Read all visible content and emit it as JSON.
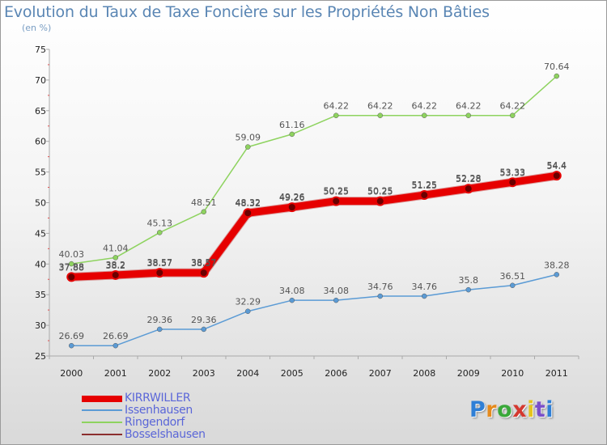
{
  "header": {
    "title": "Evolution du Taux de Taxe Foncière sur les Propriétés Non Bâties",
    "subtitle": "(en %)"
  },
  "brand": {
    "letters": [
      "P",
      "r",
      "o",
      "x",
      "i",
      "t",
      "i"
    ],
    "colors": [
      "#2f7fd6",
      "#e58a1d",
      "#3aa83a",
      "#d4382f",
      "#e5c41d",
      "#7a4fc9",
      "#2f7fd6"
    ]
  },
  "chart_data": {
    "type": "line",
    "title": "Evolution du Taux de Taxe Foncière sur les Propriétés Non Bâties",
    "subtitle": "(en %)",
    "xlabel": "",
    "ylabel": "",
    "x": [
      "2000",
      "2001",
      "2002",
      "2003",
      "2004",
      "2005",
      "2006",
      "2007",
      "2008",
      "2009",
      "2010",
      "2011"
    ],
    "ylim": [
      25,
      75
    ],
    "yticks": [
      "25",
      "30",
      "35",
      "40",
      "45",
      "50",
      "55",
      "60",
      "65",
      "70",
      "75"
    ],
    "grid": false,
    "legend_position": "bottom-left",
    "series": [
      {
        "name": "KIRRWILLER",
        "color": "#e60000",
        "values": [
          37.88,
          38.2,
          38.57,
          38.57,
          48.32,
          49.26,
          50.25,
          50.25,
          51.25,
          52.28,
          53.33,
          54.4
        ],
        "labels": [
          "37.88",
          "38.2",
          "38.57",
          "38.57",
          "48.32",
          "49.26",
          "50.25",
          "50.25",
          "51.25",
          "52.28",
          "53.33",
          "54.4"
        ]
      },
      {
        "name": "Issenhausen",
        "color": "#5b9bd5",
        "values": [
          26.69,
          26.69,
          29.36,
          29.36,
          32.29,
          34.08,
          34.08,
          34.76,
          34.76,
          35.8,
          36.51,
          38.28
        ],
        "labels": [
          "26.69",
          "26.69",
          "29.36",
          "29.36",
          "32.29",
          "34.08",
          "34.08",
          "34.76",
          "34.76",
          "35.8",
          "36.51",
          "38.28"
        ]
      },
      {
        "name": "Ringendorf",
        "color": "#8ed35f",
        "values": [
          40.03,
          41.04,
          45.13,
          48.51,
          59.09,
          61.16,
          64.22,
          64.22,
          64.22,
          64.22,
          64.22,
          70.64
        ],
        "labels": [
          "40.03",
          "41.04",
          "45.13",
          "48.51",
          "59.09",
          "61.16",
          "64.22",
          "64.22",
          "64.22",
          "64.22",
          "64.22",
          "70.64"
        ]
      },
      {
        "name": "Bosselshausen",
        "color": "#8b2e2e",
        "values": [
          37.88,
          38.2,
          38.57,
          38.57,
          48.32,
          49.26,
          50.25,
          50.25,
          51.25,
          52.28,
          53.33,
          54.4
        ],
        "labels": [
          "37.88",
          "38.2",
          "38.57",
          "38.57",
          "48.32",
          "49.26",
          "50.25",
          "50.25",
          "51.25",
          "52.28",
          "53.33",
          "54.4"
        ]
      }
    ]
  }
}
